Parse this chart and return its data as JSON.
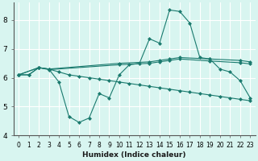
{
  "xlabel": "Humidex (Indice chaleur)",
  "bg_color": "#d8f5f0",
  "line_color": "#1a7a6e",
  "grid_color": "#ffffff",
  "grid_minor_color": "#d0eeea",
  "xlim": [
    -0.5,
    23.5
  ],
  "ylim": [
    4.0,
    8.6
  ],
  "yticks": [
    4,
    5,
    6,
    7,
    8
  ],
  "xticks": [
    0,
    1,
    2,
    3,
    4,
    5,
    6,
    7,
    8,
    9,
    10,
    11,
    12,
    13,
    14,
    15,
    16,
    17,
    18,
    19,
    20,
    21,
    22,
    23
  ],
  "s1_x": [
    0,
    1,
    2,
    3,
    4,
    5,
    6,
    7,
    8,
    9,
    10,
    11,
    12,
    13,
    14,
    15,
    16,
    17,
    18,
    19,
    20,
    21,
    22,
    23
  ],
  "s1_y": [
    6.1,
    6.1,
    6.35,
    6.3,
    5.85,
    4.65,
    4.45,
    4.6,
    5.45,
    5.3,
    6.1,
    6.45,
    6.5,
    7.35,
    7.2,
    8.35,
    8.3,
    7.9,
    6.7,
    6.65,
    6.3,
    6.2,
    5.9,
    5.3
  ],
  "s2_x": [
    0,
    1,
    2,
    3,
    4,
    5,
    6,
    7,
    8,
    9,
    10,
    11,
    12,
    13,
    14,
    15,
    16,
    17,
    18,
    19,
    20,
    21,
    22,
    23
  ],
  "s2_y": [
    6.1,
    6.1,
    6.35,
    6.3,
    6.2,
    6.1,
    6.05,
    6.0,
    5.95,
    5.9,
    5.85,
    5.8,
    5.75,
    5.7,
    5.65,
    5.6,
    5.55,
    5.5,
    5.45,
    5.4,
    5.35,
    5.3,
    5.25,
    5.2
  ],
  "s3_x": [
    0,
    2,
    3,
    10,
    13,
    14,
    15,
    16,
    19,
    22,
    23
  ],
  "s3_y": [
    6.1,
    6.35,
    6.3,
    6.5,
    6.55,
    6.6,
    6.65,
    6.7,
    6.65,
    6.6,
    6.55
  ],
  "s4_x": [
    0,
    2,
    3,
    10,
    13,
    14,
    15,
    16,
    19,
    22,
    23
  ],
  "s4_y": [
    6.1,
    6.35,
    6.28,
    6.45,
    6.5,
    6.55,
    6.6,
    6.65,
    6.58,
    6.52,
    6.48
  ],
  "tick_fontsize": 5.5,
  "xlabel_fontsize": 6.5
}
